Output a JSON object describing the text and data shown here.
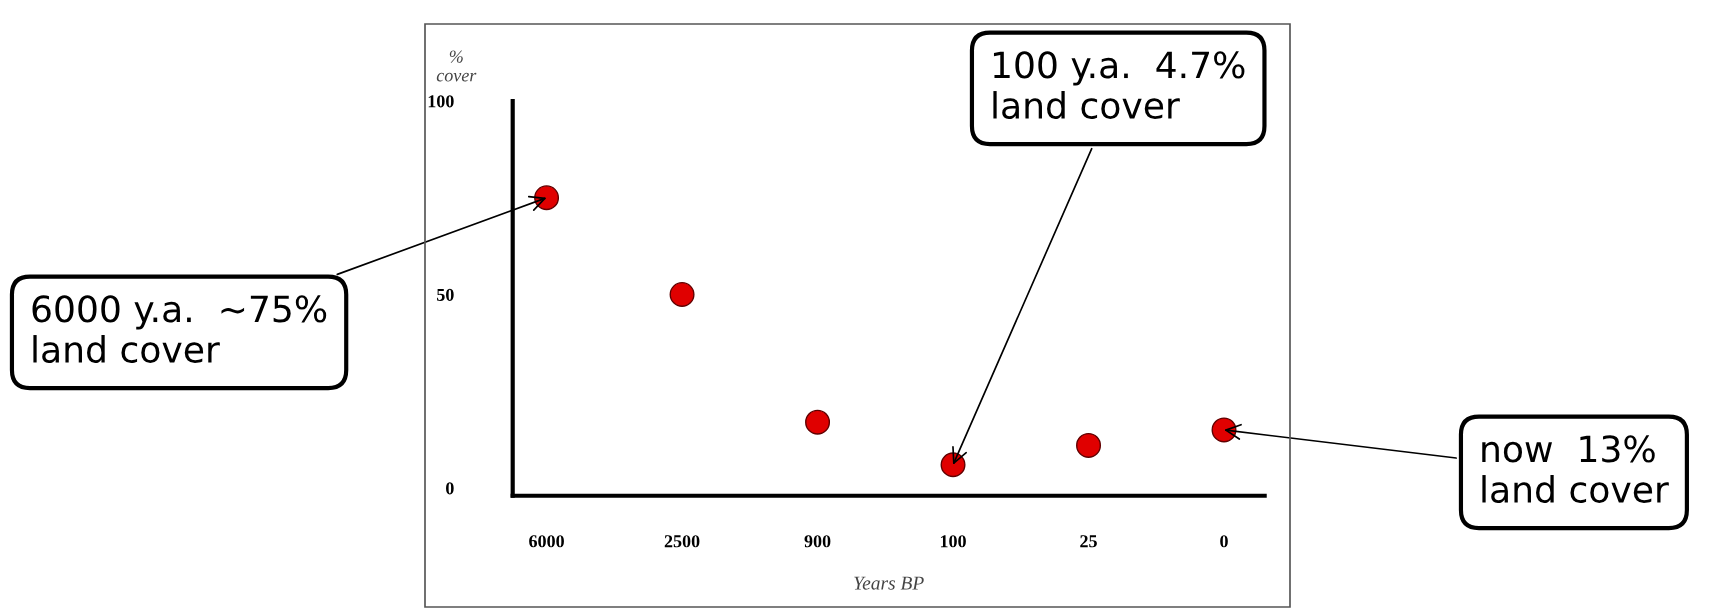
{
  "chart_data": {
    "type": "scatter",
    "xlabel": "Years BP",
    "ylabel": "%\ncover",
    "categories": [
      "6000",
      "2500",
      "900",
      "100",
      "25",
      "0"
    ],
    "series": [
      {
        "color": "#e00000",
        "values": [
          75,
          50,
          17,
          6,
          11,
          15
        ]
      }
    ],
    "ylim": [
      -2,
      100
    ],
    "yticks": [
      0,
      50,
      100
    ],
    "marker": "circle",
    "grid": false,
    "legend": false,
    "annotations": [
      {
        "text": "6000 y.a.  ~75%\nland cover",
        "x": "6000",
        "y": 75
      },
      {
        "text": "100 y.a.  4.7%\nland cover",
        "x": "100",
        "y": 6
      },
      {
        "text": "now  13%\nland cover",
        "x": "0",
        "y": 15
      }
    ]
  }
}
